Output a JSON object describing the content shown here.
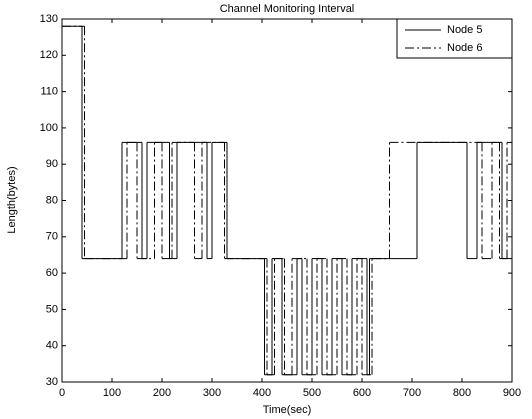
{
  "chart_data": {
    "type": "line",
    "step": "post",
    "title": "Channel Monitoring Interval",
    "xlabel": "Time(sec)",
    "ylabel": "Length(bytes)",
    "xlim": [
      0,
      900
    ],
    "xticks": [
      0,
      100,
      200,
      300,
      400,
      500,
      600,
      700,
      800,
      900
    ],
    "ylim": [
      30,
      130
    ],
    "yticks": [
      30,
      40,
      50,
      60,
      70,
      80,
      90,
      100,
      110,
      120,
      130
    ],
    "legend": "northeast",
    "series": [
      {
        "name": "Node 5",
        "color": "#000000",
        "dash": "solid",
        "x": [
          0,
          40,
          120,
          160,
          170,
          215,
          230,
          290,
          300,
          330,
          405,
          420,
          440,
          470,
          480,
          500,
          520,
          540,
          560,
          580,
          610,
          615,
          710,
          810,
          830,
          880,
          900
        ],
        "values": [
          128,
          64,
          96,
          64,
          96,
          64,
          96,
          64,
          96,
          64,
          32,
          64,
          32,
          64,
          32,
          64,
          32,
          64,
          32,
          64,
          32,
          64,
          96,
          64,
          96,
          64,
          64
        ]
      },
      {
        "name": "Node 6",
        "color": "#000000",
        "dash": "dashdot",
        "x": [
          0,
          45,
          130,
          150,
          185,
          200,
          220,
          265,
          280,
          325,
          410,
          425,
          445,
          460,
          490,
          510,
          530,
          550,
          570,
          590,
          600,
          620,
          655,
          840,
          860,
          875,
          890,
          900
        ],
        "values": [
          128,
          64,
          96,
          64,
          96,
          64,
          96,
          64,
          96,
          64,
          32,
          64,
          32,
          64,
          32,
          64,
          32,
          64,
          32,
          64,
          32,
          64,
          96,
          64,
          96,
          64,
          96,
          96
        ]
      }
    ]
  }
}
